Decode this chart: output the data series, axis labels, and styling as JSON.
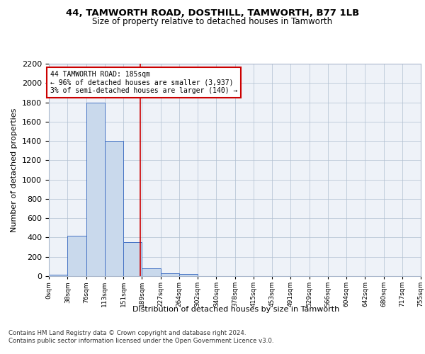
{
  "title1": "44, TAMWORTH ROAD, DOSTHILL, TAMWORTH, B77 1LB",
  "title2": "Size of property relative to detached houses in Tamworth",
  "xlabel": "Distribution of detached houses by size in Tamworth",
  "ylabel": "Number of detached properties",
  "bin_edges": [
    0,
    38,
    76,
    113,
    151,
    189,
    227,
    264,
    302,
    340,
    378,
    415,
    453,
    491,
    529,
    566,
    604,
    642,
    680,
    717,
    755
  ],
  "bar_heights": [
    15,
    420,
    1800,
    1400,
    350,
    80,
    30,
    20,
    0,
    0,
    0,
    0,
    0,
    0,
    0,
    0,
    0,
    0,
    0,
    0
  ],
  "bar_color": "#c9d9ec",
  "bar_edge_color": "#4472c4",
  "redline_x": 185,
  "annotation_text": "44 TAMWORTH ROAD: 185sqm\n← 96% of detached houses are smaller (3,937)\n3% of semi-detached houses are larger (140) →",
  "annotation_box_color": "#ffffff",
  "annotation_border_color": "#cc0000",
  "footer1": "Contains HM Land Registry data © Crown copyright and database right 2024.",
  "footer2": "Contains public sector information licensed under the Open Government Licence v3.0.",
  "ylim": [
    0,
    2200
  ],
  "yticks": [
    0,
    200,
    400,
    600,
    800,
    1000,
    1200,
    1400,
    1600,
    1800,
    2000,
    2200
  ],
  "bg_color": "#eef2f8",
  "fig_bg_color": "#ffffff",
  "tick_labels": [
    "0sqm",
    "38sqm",
    "76sqm",
    "113sqm",
    "151sqm",
    "189sqm",
    "227sqm",
    "264sqm",
    "302sqm",
    "340sqm",
    "378sqm",
    "415sqm",
    "453sqm",
    "491sqm",
    "529sqm",
    "566sqm",
    "604sqm",
    "642sqm",
    "680sqm",
    "717sqm",
    "755sqm"
  ]
}
